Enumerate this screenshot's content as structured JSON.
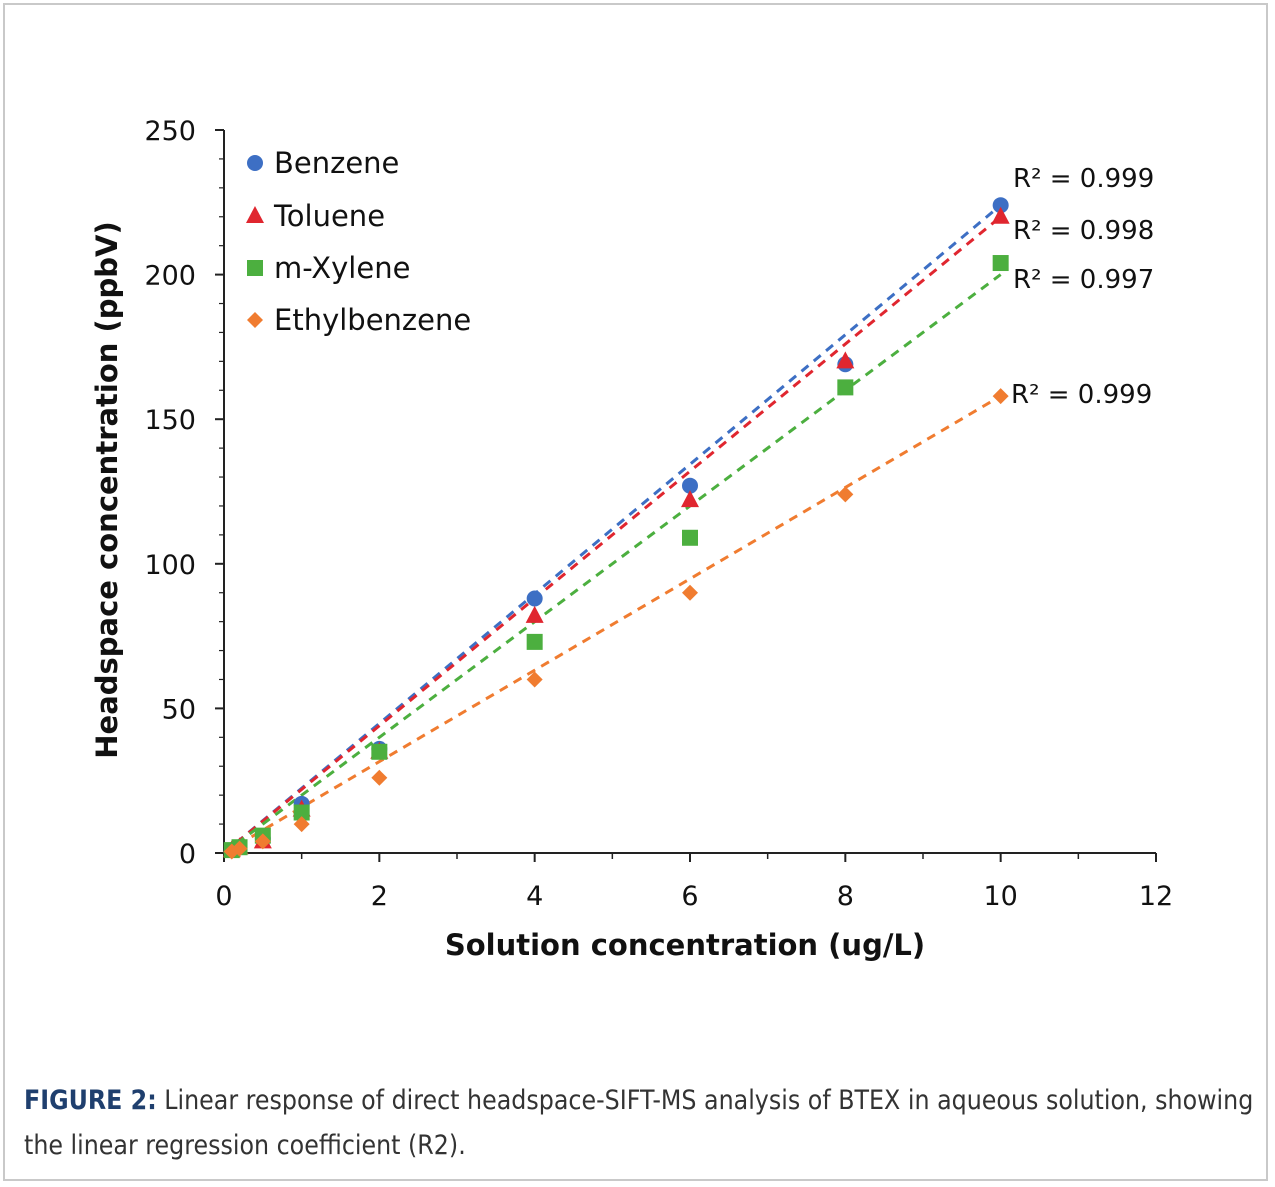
{
  "chart_data": {
    "type": "scatter",
    "xlabel": "Solution concentration (ug/L)",
    "ylabel": "Headspace concentration (ppbV)",
    "xlim": [
      0,
      12
    ],
    "ylim": [
      0,
      250
    ],
    "x_ticks": [
      "0",
      "2",
      "4",
      "6",
      "8",
      "10",
      "12"
    ],
    "y_ticks": [
      "0",
      "50",
      "100",
      "150",
      "200",
      "250"
    ],
    "legend_position": "top-left",
    "grid": false,
    "series": [
      {
        "name": "Benzene",
        "marker": "circle",
        "color": "#3d6fc4",
        "x": [
          0.1,
          0.2,
          0.5,
          1,
          2,
          4,
          6,
          8,
          10
        ],
        "y": [
          1,
          2,
          5,
          17,
          36,
          88,
          127,
          169,
          224
        ],
        "fit": [
          0,
          224
        ],
        "r2_label": "R² = 0.999"
      },
      {
        "name": "Toluene",
        "marker": "triangle",
        "color": "#e0262f",
        "x": [
          0.1,
          0.2,
          0.5,
          1,
          2,
          4,
          6,
          8,
          10
        ],
        "y": [
          1,
          2,
          4,
          15,
          35,
          82,
          122,
          170,
          220
        ],
        "fit": [
          0,
          220
        ],
        "r2_label": "R² = 0.998"
      },
      {
        "name": "m-Xylene",
        "marker": "square",
        "color": "#4caf3f",
        "x": [
          0.1,
          0.2,
          0.5,
          1,
          2,
          4,
          6,
          8,
          10
        ],
        "y": [
          1,
          2,
          6,
          14,
          35,
          73,
          109,
          161,
          204
        ],
        "fit": [
          0,
          200
        ],
        "r2_label": "R² = 0.997"
      },
      {
        "name": "Ethylbenzene",
        "marker": "diamond",
        "color": "#f07c30",
        "x": [
          0.1,
          0.2,
          0.5,
          1,
          2,
          4,
          6,
          8,
          10
        ],
        "y": [
          0.5,
          1.5,
          4,
          10,
          26,
          60,
          90,
          124,
          158
        ],
        "fit": [
          0,
          158
        ],
        "r2_label": "R² = 0.999"
      }
    ]
  },
  "caption": {
    "label": "FIGURE 2:",
    "text": " Linear response of direct headspace-SIFT-MS analysis of BTEX in aqueous solution, showing the linear regression coefficient (R2)."
  }
}
